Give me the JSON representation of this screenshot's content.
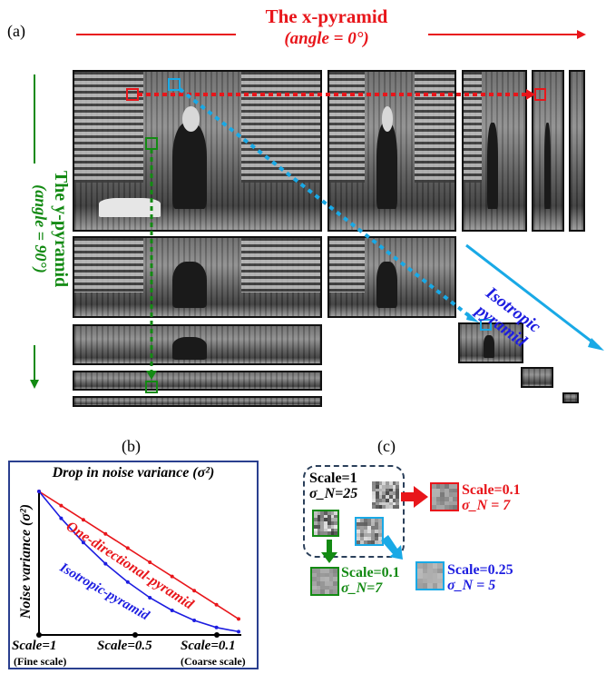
{
  "labels": {
    "a": "(a)",
    "b": "(b)",
    "c": "(c)"
  },
  "x_pyramid": {
    "title": "The x-pyramid",
    "angle": "(angle = 0°)"
  },
  "y_pyramid": {
    "title": "The y-pyramid",
    "angle": "(angle = 90°)"
  },
  "iso_pyramid": {
    "line1": "Isotropic",
    "line2": "pyramid"
  },
  "chart": {
    "title": "Drop in noise variance (σ²)",
    "ylabel": "Noise variance (σ²)",
    "series1": "One-directional-pyramid",
    "series2": "Isotropic-pyramid",
    "ticks": [
      "Scale=1",
      "Scale=0.5",
      "Scale=0.1"
    ],
    "fine": "(Fine scale)",
    "coarse": "(Coarse scale)"
  },
  "chart_data": {
    "type": "line",
    "title": "Drop in noise variance (σ²)",
    "ylabel": "Noise variance (σ²)",
    "x": [
      1.0,
      0.9,
      0.8,
      0.7,
      0.6,
      0.5,
      0.4,
      0.3,
      0.2,
      0.1
    ],
    "series": [
      {
        "name": "One-directional-pyramid",
        "values": [
          1.0,
          0.9,
          0.8,
          0.7,
          0.6,
          0.5,
          0.4,
          0.3,
          0.2,
          0.1
        ]
      },
      {
        "name": "Isotropic-pyramid",
        "values": [
          1.0,
          0.81,
          0.64,
          0.49,
          0.36,
          0.25,
          0.16,
          0.09,
          0.04,
          0.01
        ]
      }
    ]
  },
  "panel_c": {
    "scale1": "Scale=1",
    "sigma1": "σ_N=25",
    "red_scale": "Scale=0.1",
    "red_sigma": "σ_N = 7",
    "green_scale": "Scale=0.1",
    "green_sigma": "σ_N=7",
    "blue_scale": "Scale=0.25",
    "blue_sigma": "σ_N = 5"
  },
  "colors": {
    "red": "#e8161b",
    "green": "#138a13",
    "cyan": "#19a9e6",
    "blue": "#1d1de0",
    "navy": "#2a3f8f"
  }
}
